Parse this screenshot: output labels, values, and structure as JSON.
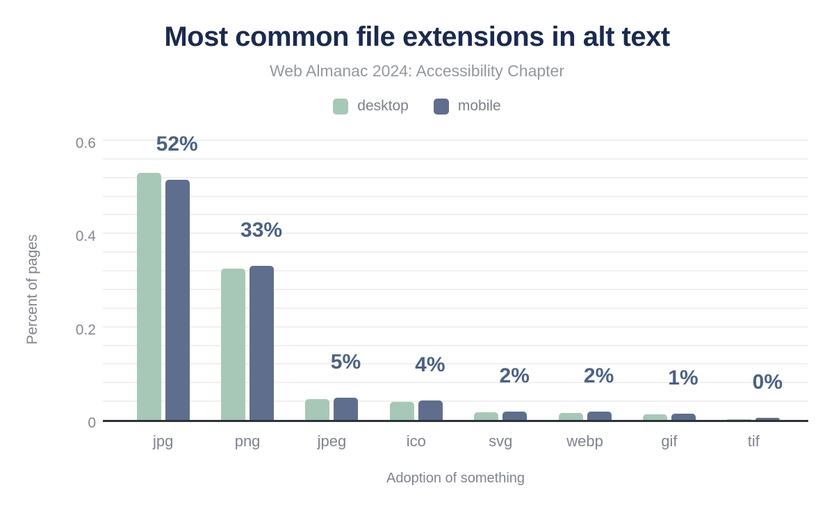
{
  "chart_data": {
    "type": "bar",
    "title": "Most common file extensions in alt text",
    "subtitle": "Web Almanac 2024: Accessibility Chapter",
    "xlabel": "Adoption of something",
    "ylabel": "Percent of pages",
    "categories": [
      "jpg",
      "png",
      "jpeg",
      "ico",
      "svg",
      "webp",
      "gif",
      "tif"
    ],
    "series": [
      {
        "name": "desktop",
        "color": "#a8c8b7",
        "values": [
          0.53,
          0.325,
          0.045,
          0.038,
          0.017,
          0.015,
          0.012,
          0.001
        ]
      },
      {
        "name": "mobile",
        "color": "#5f6e8c",
        "values": [
          0.515,
          0.33,
          0.048,
          0.042,
          0.018,
          0.018,
          0.013,
          0.004
        ]
      }
    ],
    "bar_labels": [
      "52%",
      "33%",
      "5%",
      "4%",
      "2%",
      "2%",
      "1%",
      "0%"
    ],
    "yticks": [
      0,
      0.2,
      0.4,
      0.6
    ],
    "ytick_labels": [
      "0",
      "0.2",
      "0.4",
      "0.6"
    ],
    "ylim": [
      0,
      0.6
    ],
    "grid": "horizontal minor gridlines every 0.04, light gray",
    "legend_position": "top center"
  },
  "colors": {
    "background": "#ffffff",
    "title": "#1b2a4e",
    "subtitle": "#94989d",
    "legend_text": "#7a8089",
    "value_label": "#4c6183",
    "axis_text": "#7e838d",
    "tick_text": "#83878e",
    "axis_line": "#2d3138",
    "gridline": "#f0f0f0",
    "desktop_bar": "#a8c8b7",
    "mobile_bar": "#5f6e8c"
  }
}
